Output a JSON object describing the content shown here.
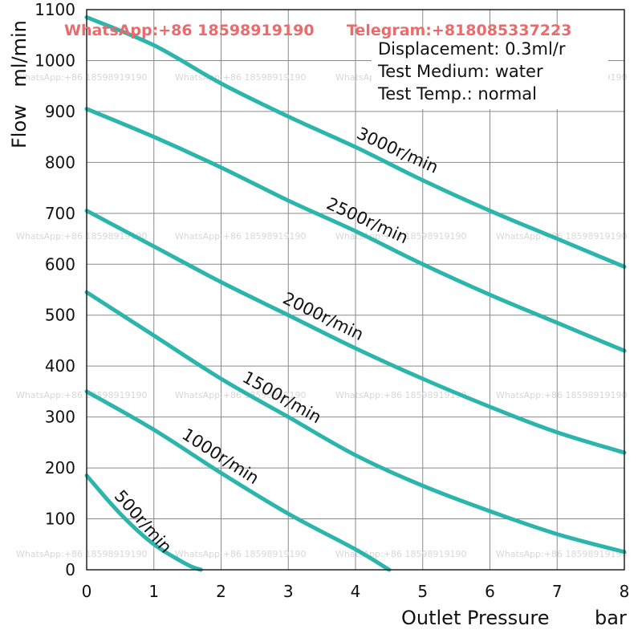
{
  "watermarks": {
    "whatsapp": "WhatsApp:+86 18598919190",
    "telegram": "Telegram:+818085337223"
  },
  "chart_data": {
    "type": "line",
    "title": "",
    "xlabel": "Outlet Pressure",
    "xunit": "bar",
    "ylabel": "Flow",
    "yunit": "ml/min",
    "xlim": [
      0,
      8
    ],
    "ylim": [
      0,
      1100
    ],
    "xticks": [
      0,
      1,
      2,
      3,
      4,
      5,
      6,
      7,
      8
    ],
    "yticks": [
      0,
      100,
      200,
      300,
      400,
      500,
      600,
      700,
      800,
      900,
      1000,
      1100
    ],
    "grid": true,
    "line_color": "#2bb5ad",
    "annotations": [
      "Displacement: 0.3ml/r",
      "Test Medium: water",
      "Test Temp.: normal"
    ],
    "series": [
      {
        "name": "3000r/min",
        "x": [
          0,
          1,
          2,
          3,
          4,
          5,
          6,
          7,
          8
        ],
        "y": [
          1085,
          1030,
          955,
          890,
          830,
          765,
          705,
          650,
          595
        ]
      },
      {
        "name": "2500r/min",
        "x": [
          0,
          1,
          2,
          3,
          4,
          5,
          6,
          7,
          8
        ],
        "y": [
          905,
          850,
          790,
          725,
          665,
          600,
          540,
          485,
          430
        ]
      },
      {
        "name": "2000r/min",
        "x": [
          0,
          1,
          2,
          3,
          4,
          5,
          6,
          7,
          8
        ],
        "y": [
          705,
          635,
          565,
          500,
          435,
          375,
          320,
          270,
          230
        ]
      },
      {
        "name": "1500r/min",
        "x": [
          0,
          1,
          2,
          3,
          4,
          5,
          6,
          7,
          8
        ],
        "y": [
          545,
          460,
          375,
          300,
          225,
          165,
          115,
          70,
          35
        ]
      },
      {
        "name": "1000r/min",
        "x": [
          0,
          1,
          2,
          3,
          4,
          4.5
        ],
        "y": [
          350,
          275,
          190,
          110,
          40,
          0
        ]
      },
      {
        "name": "500r/min",
        "x": [
          0,
          0.5,
          1,
          1.5,
          1.7
        ],
        "y": [
          185,
          110,
          50,
          10,
          0
        ]
      }
    ]
  }
}
